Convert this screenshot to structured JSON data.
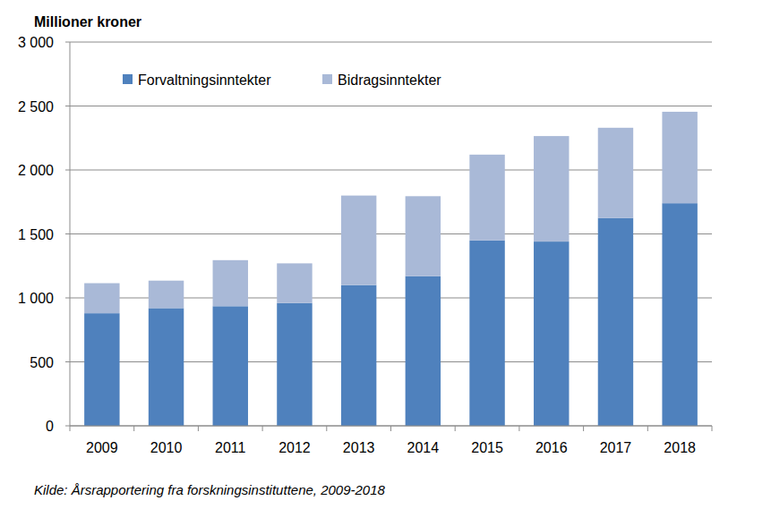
{
  "chart_data": {
    "type": "bar",
    "stacked": true,
    "y_label": "Millioner kroner",
    "source": "Kilde: Årsrapportering fra forskningsinstituttene, 2009-2018",
    "categories": [
      "2009",
      "2010",
      "2011",
      "2012",
      "2013",
      "2014",
      "2015",
      "2016",
      "2017",
      "2018"
    ],
    "series": [
      {
        "name": "Forvaltningsinntekter",
        "color": "#4f81bd",
        "values": [
          880,
          920,
          935,
          960,
          1100,
          1170,
          1450,
          1440,
          1625,
          1740
        ]
      },
      {
        "name": "Bidragsinntekter",
        "color": "#a9b9d7",
        "values": [
          235,
          215,
          360,
          310,
          700,
          625,
          670,
          825,
          705,
          715
        ]
      }
    ],
    "ylim": [
      0,
      3000
    ],
    "yticks": [
      0,
      500,
      {
        "value": 1000,
        "label": "1 000"
      },
      {
        "value": 1500,
        "label": "1 500"
      },
      {
        "value": 2000,
        "label": "2 000"
      },
      {
        "value": 2500,
        "label": "2 500"
      },
      {
        "value": 3000,
        "label": "3 000"
      }
    ],
    "grid": true,
    "legend": "top"
  }
}
